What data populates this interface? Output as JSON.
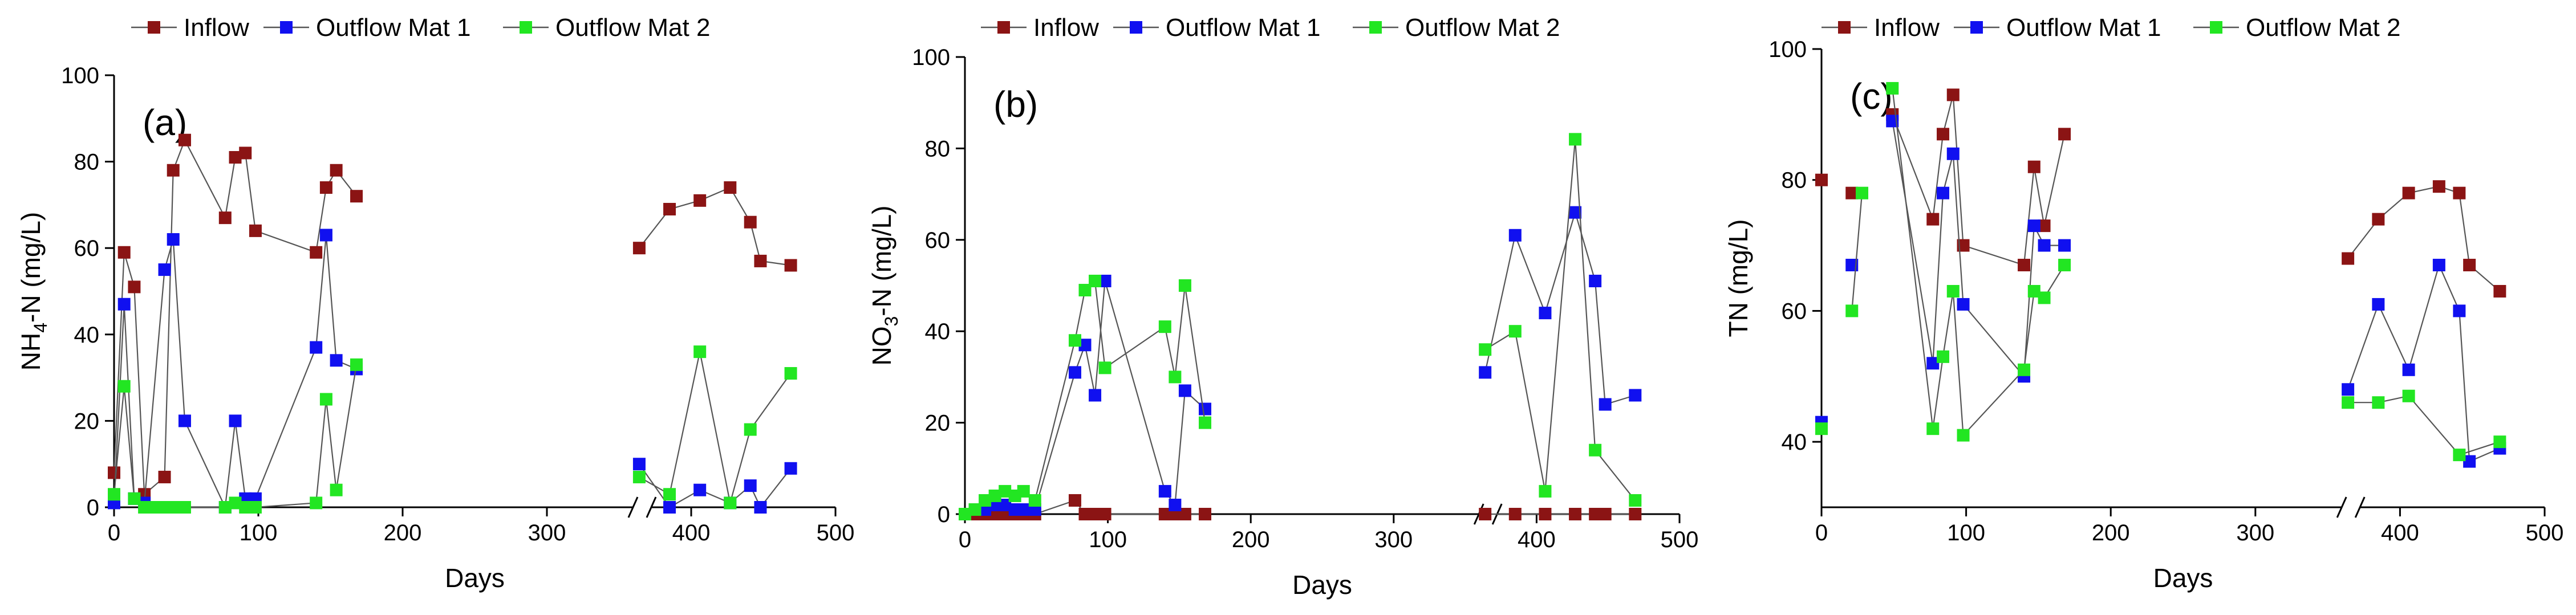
{
  "colors": {
    "inflow": "#8B1414",
    "outflow_mat_1": "#1010F0",
    "outflow_mat_2": "#22E622",
    "line": "#555555"
  },
  "chart_data": [
    {
      "type": "line",
      "panel_label": "(a)",
      "ylabel": "NH4-N (mg/L)",
      "ylabel_parts": {
        "pre": "NH",
        "sub": "4",
        "post": "-N (mg/L)"
      },
      "xlabel": "Days",
      "xlim": [
        0,
        500
      ],
      "ylim": [
        0,
        100
      ],
      "xticks": [
        0,
        100,
        200,
        300,
        400,
        500
      ],
      "xtick_labels": [
        "0",
        "100",
        "200",
        "300",
        "400",
        "500"
      ],
      "yticks": [
        0,
        20,
        40,
        60,
        80,
        100
      ],
      "ytick_labels": [
        "0",
        "20",
        "40",
        "60",
        "80",
        "100"
      ],
      "axis_break_at": 366,
      "legend": [
        "Inflow",
        "Outflow Mat 1",
        "Outflow Mat 2"
      ],
      "series": [
        {
          "name": "Inflow",
          "segments": [
            [
              [
                0,
                8
              ],
              [
                7,
                59
              ],
              [
                14,
                51
              ],
              [
                21,
                3
              ],
              [
                35,
                7
              ],
              [
                41,
                78
              ],
              [
                49,
                85
              ],
              [
                77,
                67
              ],
              [
                84,
                81
              ],
              [
                91,
                82
              ],
              [
                98,
                64
              ],
              [
                140,
                59
              ],
              [
                147,
                74
              ],
              [
                154,
                78
              ],
              [
                168,
                72
              ]
            ],
            [
              [
                364,
                60
              ],
              [
                385,
                69
              ],
              [
                406,
                71
              ],
              [
                427,
                74
              ],
              [
                441,
                66
              ],
              [
                448,
                57
              ],
              [
                469,
                56
              ]
            ]
          ]
        },
        {
          "name": "Outflow Mat 1",
          "segments": [
            [
              [
                0,
                1
              ],
              [
                7,
                47
              ],
              [
                14,
                2
              ],
              [
                21,
                1
              ],
              [
                35,
                55
              ],
              [
                41,
                62
              ],
              [
                49,
                20
              ],
              [
                77,
                0
              ],
              [
                84,
                20
              ],
              [
                91,
                2
              ],
              [
                98,
                2
              ],
              [
                140,
                37
              ],
              [
                147,
                63
              ],
              [
                154,
                34
              ],
              [
                168,
                32
              ]
            ],
            [
              [
                364,
                10
              ],
              [
                385,
                0
              ],
              [
                406,
                4
              ],
              [
                427,
                1
              ],
              [
                441,
                5
              ],
              [
                448,
                0
              ],
              [
                469,
                9
              ]
            ]
          ]
        },
        {
          "name": "Outflow Mat 2",
          "segments": [
            [
              [
                0,
                3
              ],
              [
                7,
                28
              ],
              [
                14,
                2
              ],
              [
                21,
                0
              ],
              [
                28,
                0
              ],
              [
                35,
                0
              ],
              [
                41,
                0
              ],
              [
                49,
                0
              ],
              [
                77,
                0
              ],
              [
                84,
                1
              ],
              [
                91,
                0
              ],
              [
                98,
                0
              ],
              [
                140,
                1
              ],
              [
                147,
                25
              ],
              [
                154,
                4
              ],
              [
                168,
                33
              ]
            ],
            [
              [
                364,
                7
              ],
              [
                385,
                3
              ],
              [
                406,
                36
              ],
              [
                427,
                1
              ],
              [
                441,
                18
              ],
              [
                448,
                null
              ],
              [
                469,
                31
              ]
            ]
          ]
        }
      ]
    },
    {
      "type": "line",
      "panel_label": "(b)",
      "ylabel": "NO3-N (mg/L)",
      "ylabel_parts": {
        "pre": "NO",
        "sub": "3",
        "post": "-N (mg/L)"
      },
      "xlabel": "Days",
      "xlim": [
        0,
        500
      ],
      "ylim": [
        0,
        100
      ],
      "xticks": [
        0,
        100,
        200,
        300,
        400,
        500
      ],
      "xtick_labels": [
        "0",
        "100",
        "200",
        "300",
        "400",
        "500"
      ],
      "yticks": [
        0,
        20,
        40,
        60,
        80,
        100
      ],
      "ytick_labels": [
        "0",
        "20",
        "40",
        "60",
        "80",
        "100"
      ],
      "axis_break_at": 366,
      "legend": [
        "Inflow",
        "Outflow Mat 1",
        "Outflow Mat 2"
      ],
      "series": [
        {
          "name": "Inflow",
          "segments": [
            [
              [
                0,
                0
              ],
              [
                7,
                0
              ],
              [
                14,
                0
              ],
              [
                21,
                0
              ],
              [
                28,
                0
              ],
              [
                35,
                0
              ],
              [
                41,
                0
              ],
              [
                49,
                0
              ],
              [
                77,
                3
              ],
              [
                84,
                0
              ],
              [
                91,
                0
              ],
              [
                98,
                0
              ],
              [
                140,
                0
              ],
              [
                147,
                0
              ],
              [
                154,
                0
              ],
              [
                168,
                0
              ]
            ],
            [
              [
                364,
                0
              ],
              [
                385,
                0
              ],
              [
                406,
                0
              ],
              [
                427,
                0
              ],
              [
                441,
                0
              ],
              [
                448,
                0
              ],
              [
                469,
                0
              ]
            ]
          ]
        },
        {
          "name": "Outflow Mat 1",
          "segments": [
            [
              [
                0,
                0
              ],
              [
                7,
                1
              ],
              [
                14,
                1
              ],
              [
                21,
                2
              ],
              [
                28,
                2
              ],
              [
                35,
                1
              ],
              [
                41,
                1
              ],
              [
                49,
                1
              ],
              [
                77,
                31
              ],
              [
                84,
                37
              ],
              [
                91,
                26
              ],
              [
                98,
                51
              ],
              [
                140,
                5
              ],
              [
                147,
                2
              ],
              [
                154,
                27
              ],
              [
                168,
                23
              ]
            ],
            [
              [
                364,
                31
              ],
              [
                385,
                61
              ],
              [
                406,
                44
              ],
              [
                427,
                66
              ],
              [
                441,
                51
              ],
              [
                448,
                24
              ],
              [
                469,
                26
              ]
            ]
          ]
        },
        {
          "name": "Outflow Mat 2",
          "segments": [
            [
              [
                0,
                0
              ],
              [
                7,
                1
              ],
              [
                14,
                3
              ],
              [
                21,
                4
              ],
              [
                28,
                5
              ],
              [
                35,
                4
              ],
              [
                41,
                5
              ],
              [
                49,
                3
              ],
              [
                77,
                38
              ],
              [
                84,
                49
              ],
              [
                91,
                51
              ],
              [
                98,
                32
              ],
              [
                140,
                41
              ],
              [
                147,
                30
              ],
              [
                154,
                50
              ],
              [
                168,
                20
              ]
            ],
            [
              [
                364,
                36
              ],
              [
                385,
                40
              ],
              [
                406,
                5
              ],
              [
                427,
                82
              ],
              [
                441,
                14
              ],
              [
                448,
                null
              ],
              [
                469,
                3
              ]
            ]
          ]
        }
      ]
    },
    {
      "type": "line",
      "panel_label": "(c)",
      "ylabel": "TN (mg/L)",
      "ylabel_parts": {
        "pre": "TN (mg/L)",
        "sub": "",
        "post": ""
      },
      "xlabel": "Days",
      "xlim": [
        0,
        500
      ],
      "ylim": [
        30,
        100
      ],
      "xticks": [
        0,
        100,
        200,
        300,
        400,
        500
      ],
      "xtick_labels": [
        "0",
        "100",
        "200",
        "300",
        "400",
        "500"
      ],
      "yticks": [
        40,
        60,
        80,
        100
      ],
      "ytick_labels": [
        "40",
        "60",
        "80",
        "100"
      ],
      "axis_break_at": 366,
      "legend": [
        "Inflow",
        "Outflow Mat 1",
        "Outflow Mat 2"
      ],
      "series": [
        {
          "name": "Inflow",
          "segments": [
            [
              [
                0,
                80
              ]
            ],
            [
              [
                21,
                78
              ]
            ],
            [
              [
                49,
                90
              ],
              [
                77,
                74
              ],
              [
                84,
                87
              ],
              [
                91,
                93
              ],
              [
                98,
                70
              ],
              [
                140,
                67
              ],
              [
                147,
                82
              ],
              [
                154,
                73
              ],
              [
                168,
                87
              ]
            ],
            [
              [
                364,
                68
              ],
              [
                385,
                74
              ],
              [
                406,
                78
              ],
              [
                427,
                79
              ],
              [
                441,
                78
              ],
              [
                448,
                67
              ],
              [
                469,
                63
              ]
            ]
          ]
        },
        {
          "name": "Outflow Mat 1",
          "segments": [
            [
              [
                0,
                43
              ]
            ],
            [
              [
                21,
                67
              ]
            ],
            [
              [
                49,
                89
              ],
              [
                77,
                52
              ],
              [
                84,
                78
              ],
              [
                91,
                84
              ],
              [
                98,
                61
              ],
              [
                140,
                50
              ],
              [
                147,
                73
              ],
              [
                154,
                70
              ],
              [
                168,
                70
              ]
            ],
            [
              [
                364,
                48
              ],
              [
                385,
                61
              ],
              [
                406,
                51
              ],
              [
                427,
                67
              ],
              [
                441,
                60
              ],
              [
                448,
                37
              ],
              [
                469,
                39
              ]
            ]
          ]
        },
        {
          "name": "Outflow Mat 2",
          "segments": [
            [
              [
                0,
                42
              ]
            ],
            [
              [
                21,
                60
              ],
              [
                28,
                78
              ]
            ],
            [
              [
                49,
                94
              ],
              [
                77,
                42
              ],
              [
                84,
                53
              ],
              [
                91,
                63
              ],
              [
                98,
                41
              ],
              [
                140,
                51
              ],
              [
                147,
                63
              ],
              [
                154,
                62
              ],
              [
                168,
                67
              ]
            ],
            [
              [
                364,
                46
              ],
              [
                385,
                46
              ],
              [
                406,
                47
              ],
              [
                427,
                null
              ],
              [
                441,
                38
              ],
              [
                448,
                null
              ],
              [
                469,
                40
              ]
            ]
          ]
        }
      ]
    }
  ]
}
